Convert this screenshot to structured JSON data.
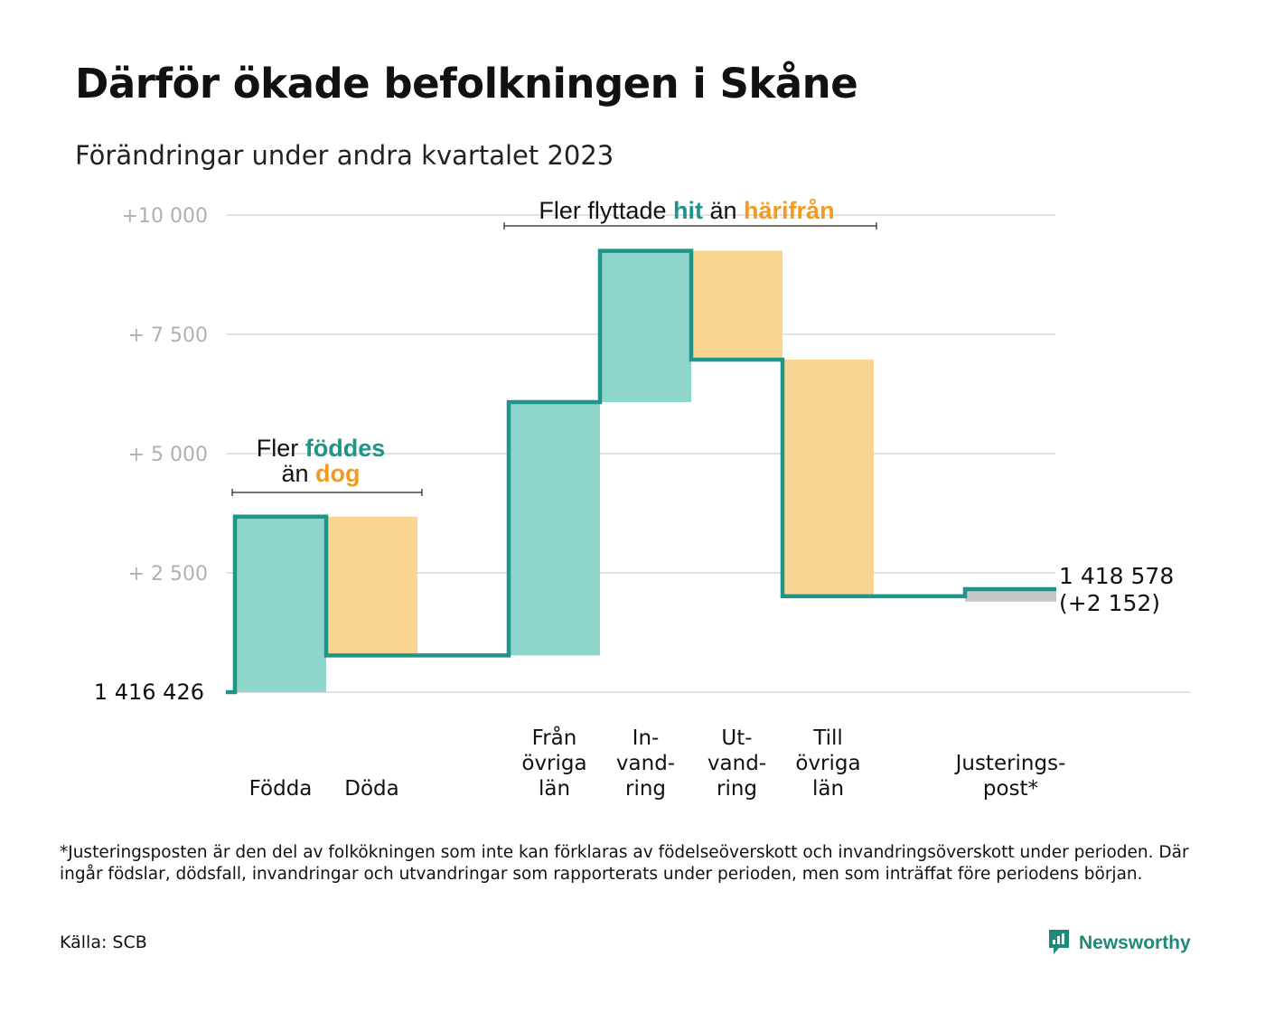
{
  "title": "Därför ökade befolkningen i Skåne",
  "subtitle": "Förändringar under andra kvartalet 2023",
  "chart_data": {
    "type": "waterfall",
    "baseline_label": "1  416   426",
    "baseline_value": 1416426,
    "final_value_label": "1 418 578",
    "final_change_label": "(+2 152)",
    "y_axis": {
      "unit": "change from baseline",
      "ylim": [
        0,
        10000
      ],
      "ticks": [
        {
          "value": 2500,
          "label": "+  2  500"
        },
        {
          "value": 5000,
          "label": "+  5  000"
        },
        {
          "value": 7500,
          "label": "+  7  500"
        },
        {
          "value": 10000,
          "label": "+10   000"
        }
      ]
    },
    "grid": true,
    "steps": [
      {
        "key": "fodda",
        "label_lines": [
          "Födda"
        ],
        "change": 3680,
        "type": "increase"
      },
      {
        "key": "doda",
        "label_lines": [
          "Döda"
        ],
        "change": -2910,
        "type": "decrease"
      },
      {
        "key": "gap",
        "label_lines": [],
        "change": 0,
        "type": "gap"
      },
      {
        "key": "fran-ovriga-lan",
        "label_lines": [
          "Från",
          "övriga",
          "län"
        ],
        "change": 5310,
        "type": "increase"
      },
      {
        "key": "invandring",
        "label_lines": [
          "In-",
          "vand-",
          "ring"
        ],
        "change": 3170,
        "type": "increase"
      },
      {
        "key": "utvandring",
        "label_lines": [
          "Ut-",
          "vand-",
          "ring"
        ],
        "change": -2280,
        "type": "decrease"
      },
      {
        "key": "till-ovriga-lan",
        "label_lines": [
          "Till",
          "övriga",
          "län"
        ],
        "change": -4960,
        "type": "decrease"
      },
      {
        "key": "gap2",
        "label_lines": [],
        "change": 0,
        "type": "gap"
      },
      {
        "key": "justeringspost",
        "label_lines": [
          "Justerings-",
          "post*"
        ],
        "change": 150,
        "type": "adjustment"
      }
    ],
    "annotations": [
      {
        "key": "births",
        "parts": [
          {
            "text": "Fler ",
            "color": "#111111"
          },
          {
            "text": "föddes",
            "color": "#1f9488",
            "bold": true
          },
          {
            "text": "\n",
            "color": "#111111"
          },
          {
            "text": "än ",
            "color": "#111111"
          },
          {
            "text": "dog",
            "color": "#f29b20",
            "bold": true
          }
        ]
      },
      {
        "key": "migration",
        "parts": [
          {
            "text": "Fler flyttade ",
            "color": "#111111"
          },
          {
            "text": "hit",
            "color": "#1f9488",
            "bold": true
          },
          {
            "text": "  än ",
            "color": "#111111"
          },
          {
            "text": "härifrån",
            "color": "#f29b20",
            "bold": true
          }
        ]
      }
    ],
    "colors": {
      "increase": "#8ed5cb",
      "decrease": "#f9d591",
      "adjustment": "#c6c6c6",
      "line": "#1f9488",
      "grid": "#e1e1e1",
      "tick_label": "#b0b0b0",
      "accent_teal": "#1f9488",
      "accent_orange": "#f29b20"
    }
  },
  "footnote": "*Justeringsposten är den del av folkökningen som inte kan förklaras av födelseöverskott och invandringsöverskott under perioden. Där ingår födslar, dödsfall, invandringar och utvandringar som rapporterats under perioden, men som inträffat före periodens början.",
  "source": "Källa: SCB",
  "brand": {
    "name": "Newsworthy",
    "icon": "newsworthy-logo-icon",
    "color": "#1f8a7a"
  }
}
